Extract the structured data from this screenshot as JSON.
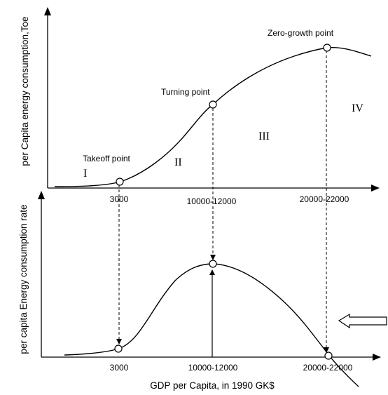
{
  "top_chart": {
    "ylabel": "per Capita energy consumption,Toe",
    "points": {
      "takeoff": "Takeoff point",
      "turning": "Turning point",
      "zero_growth": "Zero-growth point"
    },
    "stages": [
      "I",
      "II",
      "III",
      "IV"
    ],
    "tick_labels": [
      "3000",
      "10000-12000",
      "20000-22000"
    ]
  },
  "bottom_chart": {
    "ylabel": "per capita Energy consumption rate",
    "tick_labels": [
      "3000",
      "10000-12000",
      "20000-22000"
    ],
    "xlabel": "GDP per Capita, in 1990 GK$"
  }
}
